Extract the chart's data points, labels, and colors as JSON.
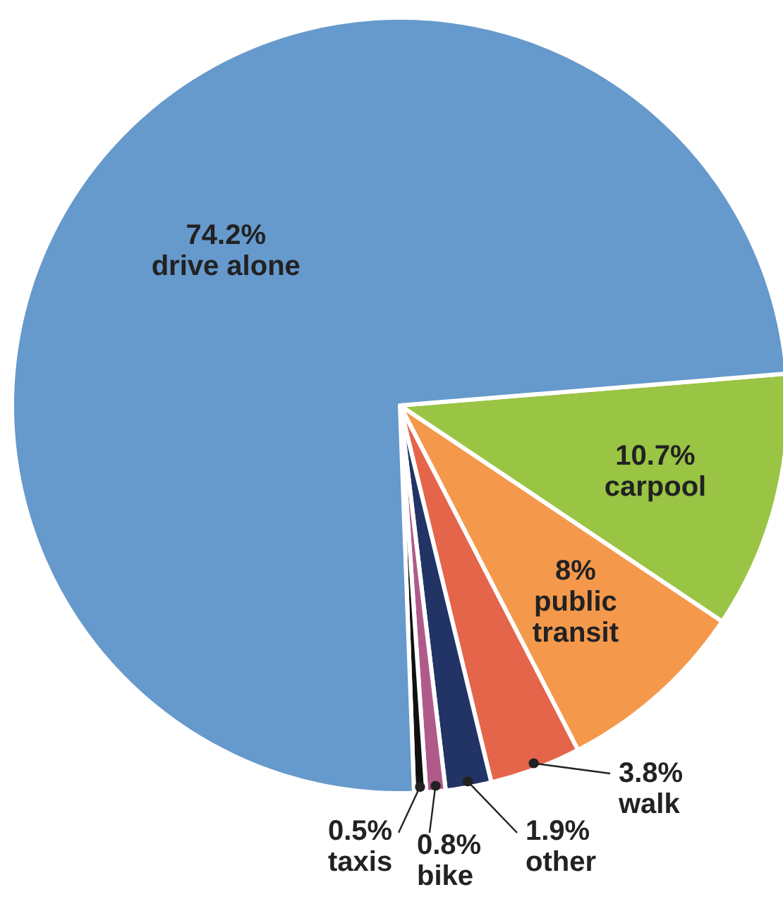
{
  "chart_data": {
    "type": "pie",
    "categories": [
      "carpool",
      "public transit",
      "walk",
      "other",
      "bike",
      "taxis",
      "drive alone"
    ],
    "values": [
      10.7,
      8,
      3.8,
      1.9,
      0.8,
      0.5,
      74.2
    ],
    "colors": [
      "#99c444",
      "#f4994c",
      "#e5654a",
      "#223366",
      "#b05a8a",
      "#111111",
      "#6699cc"
    ],
    "value_labels": [
      "10.7%",
      "8%",
      "3.8%",
      "1.9%",
      "0.8%",
      "0.5%",
      "74.2%"
    ]
  }
}
